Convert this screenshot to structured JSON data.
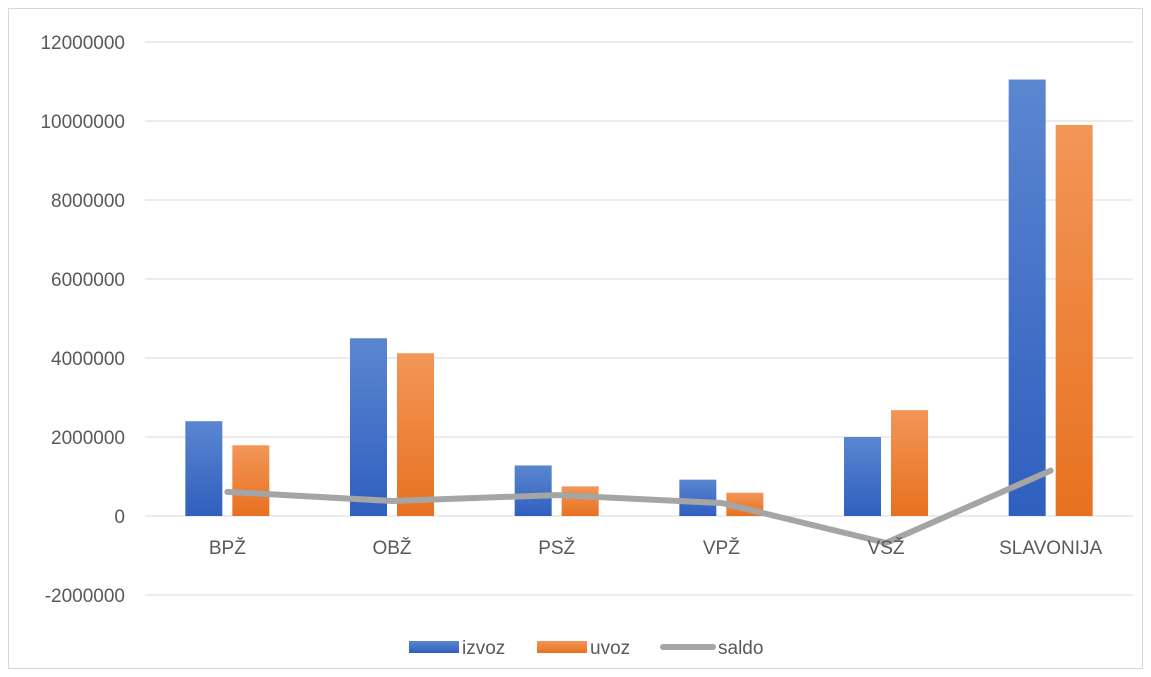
{
  "chart_data": {
    "type": "bar",
    "categories": [
      "BPŽ",
      "OBŽ",
      "PSŽ",
      "VPŽ",
      "VSŽ",
      "SLAVONIJA"
    ],
    "series": [
      {
        "name": "izvoz",
        "kind": "bar",
        "color": "#4472c4",
        "values": [
          2400000,
          4500000,
          1280000,
          920000,
          2000000,
          11050000
        ]
      },
      {
        "name": "uvoz",
        "kind": "bar",
        "color": "#ed7d31",
        "values": [
          1790000,
          4120000,
          750000,
          590000,
          2680000,
          9900000
        ]
      },
      {
        "name": "saldo",
        "kind": "line",
        "color": "#a5a5a5",
        "values": [
          610000,
          380000,
          530000,
          330000,
          -680000,
          1150000
        ]
      }
    ],
    "ylim": [
      -2000000,
      12000000
    ],
    "yticks": [
      -2000000,
      0,
      2000000,
      4000000,
      6000000,
      8000000,
      10000000,
      12000000
    ],
    "grid": true,
    "legend_position": "bottom",
    "title": "",
    "xlabel": "",
    "ylabel": ""
  }
}
